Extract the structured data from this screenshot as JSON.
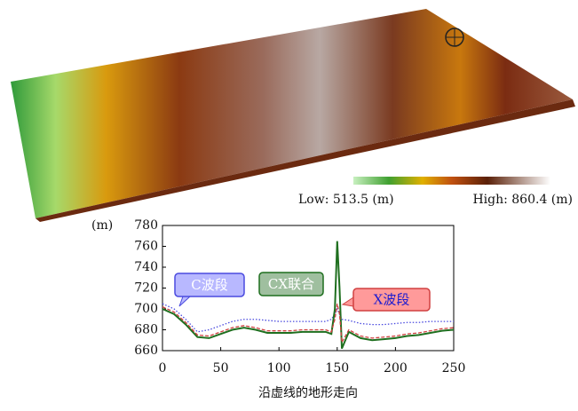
{
  "chart_data": {
    "type": "line",
    "colorbar_low_label": "Low: 513.5 (m)",
    "colorbar_high_label": "High: 860.4 (m)",
    "ylabel": "(m)",
    "xlabel": "沿虚线的地形走向",
    "x": [
      0,
      10,
      20,
      30,
      40,
      50,
      60,
      70,
      80,
      90,
      100,
      110,
      120,
      130,
      140,
      145,
      148,
      150,
      152,
      154,
      160,
      170,
      180,
      190,
      200,
      210,
      220,
      230,
      240,
      250
    ],
    "series": [
      {
        "name": "C波段",
        "color": "#4a4adf",
        "style": "dotted",
        "values": [
          705,
          700,
          690,
          678,
          680,
          684,
          688,
          690,
          690,
          689,
          688,
          688,
          688,
          688,
          688,
          690,
          695,
          700,
          695,
          690,
          689,
          686,
          685,
          685,
          686,
          687,
          687,
          688,
          688,
          688
        ]
      },
      {
        "name": "CX联合",
        "color": "#1f6f1f",
        "style": "solid",
        "values": [
          700,
          695,
          685,
          673,
          672,
          676,
          680,
          682,
          680,
          677,
          677,
          677,
          678,
          678,
          678,
          676,
          700,
          765,
          720,
          662,
          678,
          672,
          670,
          671,
          672,
          674,
          675,
          677,
          679,
          680
        ]
      },
      {
        "name": "X波段",
        "color": "#d04040",
        "style": "dashed",
        "values": [
          702,
          697,
          687,
          675,
          674,
          678,
          682,
          684,
          682,
          679,
          679,
          679,
          680,
          680,
          680,
          678,
          690,
          705,
          695,
          668,
          680,
          674,
          672,
          673,
          674,
          676,
          677,
          679,
          681,
          682
        ]
      }
    ],
    "xlim": [
      0,
      250
    ],
    "xticks": [
      0,
      50,
      100,
      150,
      200,
      250
    ],
    "ylim": [
      660,
      780
    ],
    "yticks": [
      660,
      680,
      700,
      720,
      740,
      760,
      780
    ]
  }
}
